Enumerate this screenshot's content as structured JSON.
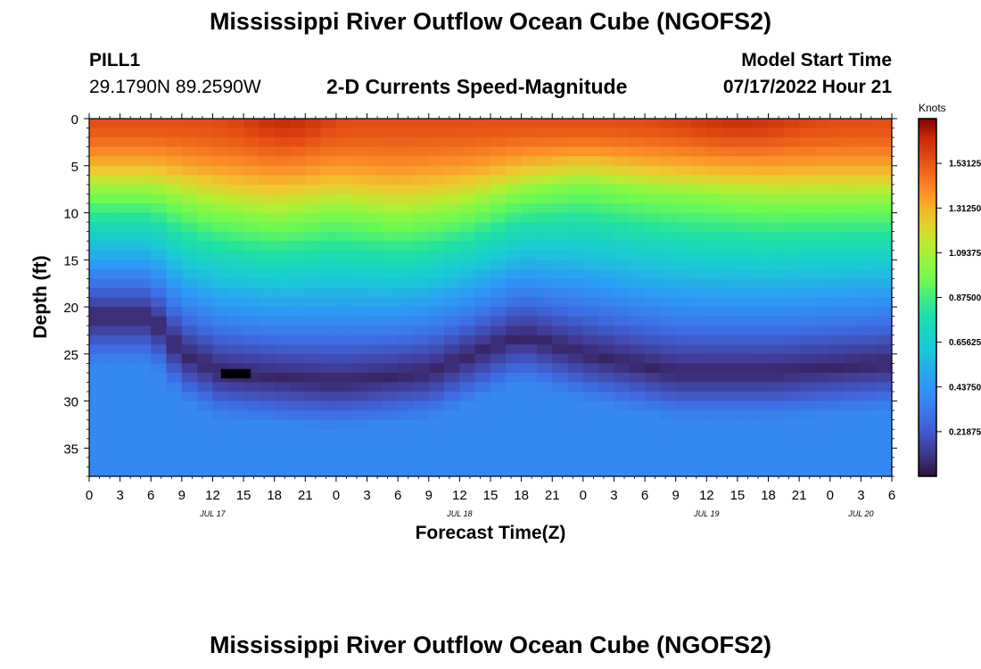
{
  "header": {
    "title": "Mississippi River Outflow Ocean Cube (NGOFS2)",
    "station_id": "PILL1",
    "coordinates": "29.1790N  89.2590W",
    "plot_title": "2-D Currents Speed-Magnitude",
    "model_start_label": "Model Start Time",
    "model_start_value": "07/17/2022 Hour 21"
  },
  "footer": {
    "title_repeat": "Mississippi River Outflow Ocean Cube (NGOFS2)"
  },
  "chart_data": {
    "type": "heatmap",
    "title": "2-D Currents Speed-Magnitude",
    "xlabel": "Forecast Time(Z)",
    "ylabel": "Depth (ft)",
    "x_ticks": [
      0,
      3,
      6,
      9,
      12,
      15,
      18,
      21,
      24,
      27,
      30,
      33,
      36,
      39,
      42,
      45,
      48,
      51,
      54,
      57,
      60,
      63,
      66,
      69,
      72,
      75,
      78
    ],
    "x_tick_labels": [
      "0",
      "3",
      "6",
      "9",
      "12",
      "15",
      "18",
      "21",
      "0",
      "3",
      "6",
      "9",
      "12",
      "15",
      "18",
      "21",
      "0",
      "3",
      "6",
      "9",
      "12",
      "15",
      "18",
      "21",
      "0",
      "3",
      "6"
    ],
    "xlim": [
      0,
      78
    ],
    "date_labels": [
      {
        "text": "JUL 17",
        "x": 12
      },
      {
        "text": "JUL 18",
        "x": 36
      },
      {
        "text": "JUL 19",
        "x": 60
      },
      {
        "text": "JUL 20",
        "x": 75
      }
    ],
    "y_ticks": [
      0,
      5,
      10,
      15,
      20,
      25,
      30,
      35
    ],
    "ylim": [
      0,
      38
    ],
    "y_inverted": true,
    "colorbar": {
      "title": "Knots",
      "vmin": 0.0,
      "vmax": 1.75,
      "tick_labels": [
        "1.53125",
        "1.31250",
        "1.09375",
        "0.87500",
        "0.65625",
        "0.43750",
        "0.21875"
      ],
      "tick_values": [
        1.53125,
        1.3125,
        1.09375,
        0.875,
        0.65625,
        0.4375,
        0.21875
      ]
    },
    "field_model": {
      "description": "speed magnitude (knots) vs forecast hour and depth (ft)",
      "surface_speed_kn": 1.55,
      "minimum_layer_depth_ft_by_hour": [
        [
          0,
          21
        ],
        [
          6,
          21
        ],
        [
          9,
          25
        ],
        [
          13,
          27
        ],
        [
          24,
          28
        ],
        [
          33,
          27
        ],
        [
          42,
          23
        ],
        [
          48,
          25
        ],
        [
          57,
          27
        ],
        [
          66,
          27
        ],
        [
          78,
          26
        ]
      ],
      "surface_layer_depth_ft_by_hour": [
        [
          0,
          8
        ],
        [
          6,
          8
        ],
        [
          12,
          10
        ],
        [
          18,
          11
        ],
        [
          24,
          10
        ],
        [
          30,
          11
        ],
        [
          36,
          10
        ],
        [
          42,
          8
        ],
        [
          48,
          7
        ],
        [
          54,
          8
        ],
        [
          66,
          9
        ],
        [
          78,
          9
        ]
      ]
    },
    "marker": {
      "label": "missing data",
      "x_range": [
        12.8,
        15.7
      ],
      "depth_range": [
        26.6,
        27.6
      ]
    }
  }
}
